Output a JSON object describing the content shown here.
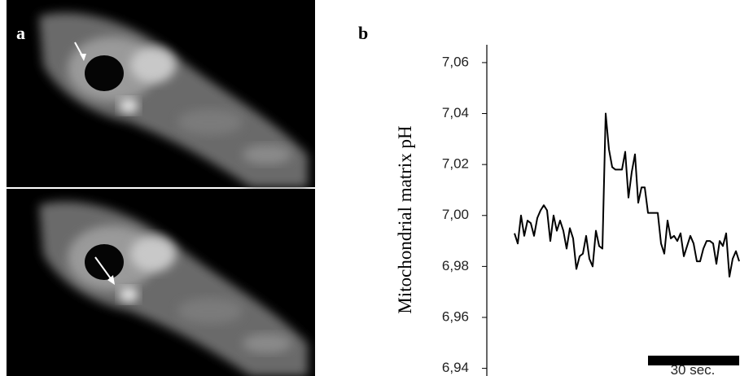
{
  "panel_labels": [
    "a",
    "b"
  ],
  "chart_data": {
    "type": "line",
    "y_label": "Mitochondrial matrix pH",
    "scale_bar_label": "30 sec.",
    "color": "#000000",
    "ylim": [
      6.937,
      7.067
    ],
    "yticks": [
      {
        "value": 6.94,
        "label": "6,94"
      },
      {
        "value": 6.96,
        "label": "6,96"
      },
      {
        "value": 6.98,
        "label": "6,98"
      },
      {
        "value": 7.0,
        "label": "7,00"
      },
      {
        "value": 7.02,
        "label": "7,02"
      },
      {
        "value": 7.04,
        "label": "7,04"
      },
      {
        "value": 7.06,
        "label": "7,06"
      }
    ],
    "values": [
      6.993,
      6.989,
      7.0,
      6.992,
      6.998,
      6.997,
      6.992,
      6.999,
      7.002,
      7.004,
      7.002,
      6.99,
      7.0,
      6.994,
      6.998,
      6.994,
      6.987,
      6.995,
      6.991,
      6.979,
      6.984,
      6.985,
      6.992,
      6.983,
      6.98,
      6.994,
      6.988,
      6.987,
      7.04,
      7.026,
      7.019,
      7.018,
      7.018,
      7.018,
      7.025,
      7.007,
      7.017,
      7.024,
      7.005,
      7.011,
      7.011,
      7.001,
      7.001,
      7.001,
      7.001,
      6.989,
      6.985,
      6.998,
      6.991,
      6.992,
      6.99,
      6.993,
      6.984,
      6.988,
      6.992,
      6.989,
      6.982,
      6.982,
      6.987,
      6.99,
      6.99,
      6.989,
      6.981,
      6.99,
      6.988,
      6.993,
      6.976,
      6.983,
      6.986,
      6.982
    ]
  }
}
